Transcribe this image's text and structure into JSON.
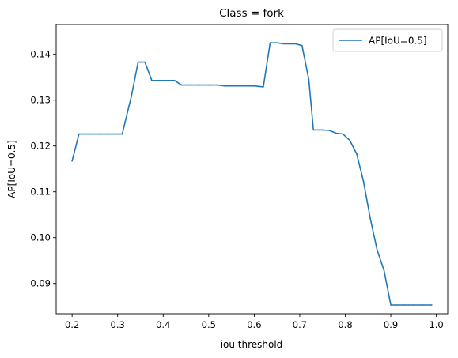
{
  "chart_data": {
    "type": "line",
    "title": "Class = fork",
    "xlabel": "iou threshold",
    "ylabel": "AP[IoU=0.5]",
    "xlim": [
      0.165,
      1.025
    ],
    "ylim": [
      0.0834,
      0.1465
    ],
    "xticks": [
      "0.2",
      "0.3",
      "0.4",
      "0.5",
      "0.6",
      "0.7",
      "0.8",
      "0.9",
      "1.0"
    ],
    "yticks": [
      "0.09",
      "0.10",
      "0.11",
      "0.12",
      "0.13",
      "0.14"
    ],
    "grid": false,
    "legend_position": "top-right",
    "series": [
      {
        "name": "AP[IoU=0.5]",
        "color": "#1f77b4",
        "x": [
          0.2,
          0.215,
          0.24,
          0.26,
          0.28,
          0.3,
          0.31,
          0.33,
          0.345,
          0.36,
          0.375,
          0.39,
          0.41,
          0.425,
          0.44,
          0.46,
          0.48,
          0.5,
          0.52,
          0.535,
          0.56,
          0.58,
          0.6,
          0.62,
          0.635,
          0.65,
          0.665,
          0.68,
          0.69,
          0.705,
          0.72,
          0.73,
          0.75,
          0.765,
          0.78,
          0.795,
          0.81,
          0.825,
          0.84,
          0.855,
          0.87,
          0.885,
          0.9,
          0.91,
          0.93,
          0.95,
          0.97,
          0.99
        ],
        "values": [
          0.1167,
          0.1226,
          0.1226,
          0.1226,
          0.1226,
          0.1226,
          0.1226,
          0.1308,
          0.1383,
          0.1383,
          0.1343,
          0.1343,
          0.1343,
          0.1343,
          0.1333,
          0.1333,
          0.1333,
          0.1333,
          0.1333,
          0.1331,
          0.1331,
          0.1331,
          0.1331,
          0.1329,
          0.1425,
          0.1425,
          0.1423,
          0.1423,
          0.1423,
          0.1419,
          0.1345,
          0.1235,
          0.1235,
          0.1234,
          0.1228,
          0.1226,
          0.1212,
          0.1183,
          0.1123,
          0.1041,
          0.0973,
          0.0929,
          0.0853,
          0.0853,
          0.0853,
          0.0853,
          0.0853,
          0.0853
        ]
      }
    ]
  }
}
